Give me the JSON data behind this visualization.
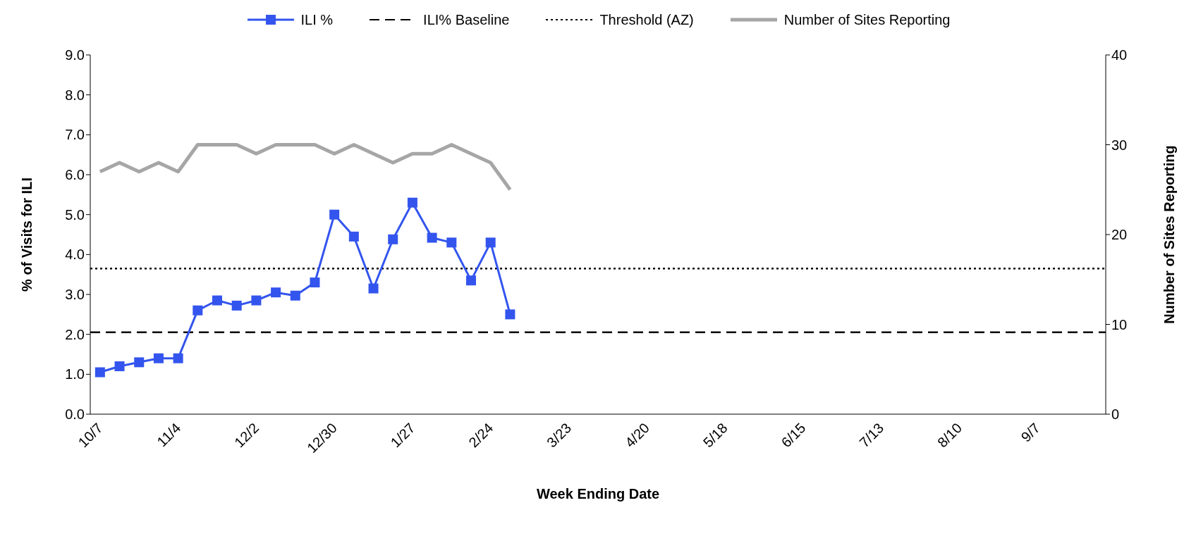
{
  "chart_data": {
    "type": "line",
    "xlabel": "Week Ending Date",
    "ylabel": "% of Visits for ILI",
    "y2label": "Number of Sites Reporting",
    "categories": [
      "10/7",
      null,
      null,
      null,
      "11/4",
      null,
      null,
      null,
      "12/2",
      null,
      null,
      null,
      "12/30",
      null,
      null,
      null,
      "1/27",
      null,
      null,
      null,
      "2/24",
      null,
      null,
      null,
      "3/23",
      null,
      null,
      null,
      "4/20",
      null,
      null,
      null,
      "5/18",
      null,
      null,
      null,
      "6/15",
      null,
      null,
      null,
      "7/13",
      null,
      null,
      null,
      "8/10",
      null,
      null,
      null,
      "9/7",
      null,
      null,
      null
    ],
    "series": [
      {
        "name": "ILI %",
        "color": "#3355ee",
        "marker": "square",
        "values": [
          1.05,
          1.2,
          1.3,
          1.4,
          1.4,
          2.6,
          2.85,
          2.72,
          2.85,
          3.05,
          2.97,
          3.3,
          5.0,
          4.45,
          3.15,
          4.38,
          5.3,
          4.42,
          4.3,
          3.35,
          4.3,
          2.5,
          null,
          null,
          null,
          null,
          null,
          null,
          null,
          null,
          null,
          null,
          null,
          null,
          null,
          null,
          null,
          null,
          null,
          null,
          null,
          null,
          null,
          null,
          null,
          null,
          null,
          null,
          null,
          null,
          null,
          null
        ]
      },
      {
        "name": "Number of Sites Reporting",
        "color": "#a6a6a6",
        "marker": "none",
        "axis": "y2",
        "values": [
          27,
          28,
          27,
          28,
          27,
          30,
          30,
          30,
          29,
          30,
          30,
          30,
          29,
          30,
          29,
          28,
          29,
          29,
          30,
          29,
          28,
          25,
          null,
          null,
          null,
          null,
          null,
          null,
          null,
          null,
          null,
          null,
          null,
          null,
          null,
          null,
          null,
          null,
          null,
          null,
          null,
          null,
          null,
          null,
          null,
          null,
          null,
          null,
          null,
          null,
          null,
          null
        ]
      }
    ],
    "ref_lines": [
      {
        "axis": "y",
        "value": 2.05,
        "label": "ILI% Baseline",
        "color": "#000000",
        "line_style": "dashed"
      },
      {
        "axis": "y",
        "value": 3.65,
        "label": "Threshold (AZ)",
        "color": "#000000",
        "line_style": "dotted"
      }
    ],
    "ylim": [
      0,
      9
    ],
    "yticks": [
      {
        "value": 0,
        "label": "0.0"
      },
      {
        "value": 1,
        "label": "1.0"
      },
      {
        "value": 2,
        "label": "2.0"
      },
      {
        "value": 3,
        "label": "3.0"
      },
      {
        "value": 4,
        "label": "4.0"
      },
      {
        "value": 5,
        "label": "5.0"
      },
      {
        "value": 6,
        "label": "6.0"
      },
      {
        "value": 7,
        "label": "7.0"
      },
      {
        "value": 8,
        "label": "8.0"
      },
      {
        "value": 9,
        "label": "9.0"
      }
    ],
    "y2lim": [
      0,
      40
    ],
    "y2ticks": [
      0,
      10,
      20,
      30,
      40
    ],
    "grid": false,
    "legend": "top"
  }
}
